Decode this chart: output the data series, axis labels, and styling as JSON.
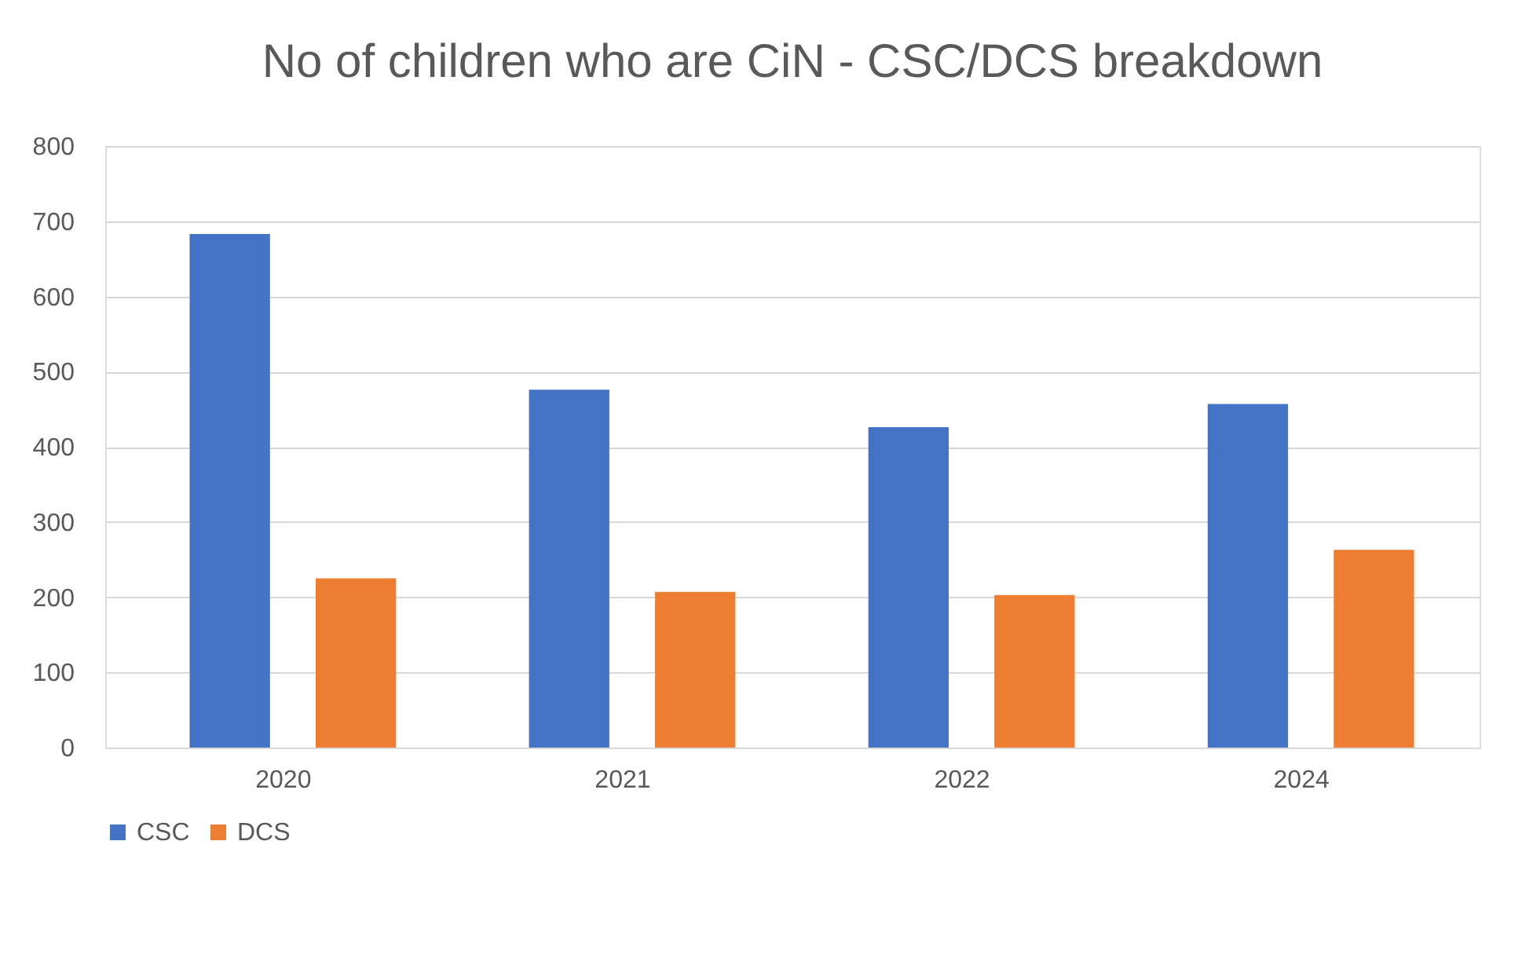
{
  "chart_data": {
    "type": "bar",
    "title": "No of children who are CiN - CSC/DCS breakdown",
    "categories": [
      "2020",
      "2021",
      "2022",
      "2024"
    ],
    "series": [
      {
        "name": "CSC",
        "color": "#4472c4",
        "values": [
          683,
          476,
          426,
          457
        ]
      },
      {
        "name": "DCS",
        "color": "#ed7d31",
        "values": [
          225,
          207,
          203,
          263
        ]
      }
    ],
    "ylim": [
      0,
      800
    ],
    "yticks": [
      0,
      100,
      200,
      300,
      400,
      500,
      600,
      700,
      800
    ],
    "grid": "y",
    "legend": "bottom"
  }
}
